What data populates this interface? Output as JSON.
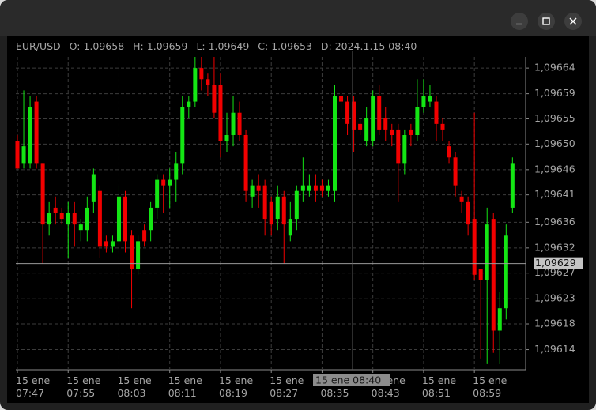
{
  "chart_data": {
    "type": "candlestick",
    "header": [
      "EUR/USD",
      "O: 1.09658",
      "H: 1.09659",
      "L: 1.09649",
      "C: 1.09653",
      "D: 2024.1.15 08:40"
    ],
    "categories": [
      "15 ene 07:47",
      null,
      null,
      null,
      null,
      null,
      null,
      null,
      "15 ene 07:55",
      null,
      null,
      null,
      null,
      null,
      null,
      null,
      "15 ene 08:03",
      null,
      null,
      null,
      null,
      null,
      null,
      null,
      "15 ene 08:11",
      null,
      null,
      null,
      null,
      null,
      null,
      null,
      "15 ene 08:19",
      null,
      null,
      null,
      null,
      null,
      null,
      null,
      "15 ene 08:27",
      null,
      null,
      null,
      null,
      null,
      null,
      null,
      "15 ene 08:35",
      null,
      null,
      null,
      null,
      null,
      null,
      null,
      "15 ene 08:43",
      null,
      null,
      null,
      null,
      null,
      null,
      null,
      "15 ene 08:51",
      null,
      null,
      null,
      null,
      null,
      null,
      null,
      "15 ene 08:59",
      null,
      null,
      null,
      null,
      null,
      null
    ],
    "open": [
      1.09651,
      1.09647,
      1.09647,
      1.09658,
      1.09647,
      1.09636,
      1.09639,
      1.09638,
      1.09636,
      1.09638,
      1.09635,
      1.09635,
      1.0964,
      1.09642,
      1.09633,
      1.09632,
      1.09633,
      1.09641,
      1.09634,
      1.09628,
      1.09635,
      1.09635,
      1.09639,
      1.09644,
      1.09643,
      1.09644,
      1.09647,
      1.09657,
      1.09658,
      1.09664,
      1.09662,
      1.09661,
      1.09661,
      1.09651,
      1.09652,
      1.09656,
      1.09652,
      1.09641,
      1.09643,
      1.09643,
      1.0964,
      1.09637,
      1.09641,
      1.09634,
      1.09637,
      1.09642,
      1.09642,
      1.09643,
      1.09643,
      1.09642,
      1.09642,
      1.09659,
      1.09658,
      1.09658,
      1.09654,
      1.09651,
      1.09651,
      1.09659,
      1.09655,
      1.09653,
      1.09653,
      1.09647,
      1.09653,
      1.09652,
      1.09657,
      1.09658,
      1.09658,
      1.09654,
      1.0965,
      1.09648,
      1.09641,
      1.0964,
      1.09637,
      1.09628,
      1.09626,
      1.09637,
      1.09617,
      1.09621,
      1.09639
    ],
    "high": [
      1.09652,
      1.0966,
      1.09659,
      1.09659,
      1.09647,
      1.0964,
      1.09641,
      1.09639,
      1.0964,
      1.0964,
      1.09637,
      1.09641,
      1.09646,
      1.09643,
      1.09634,
      1.09634,
      1.09643,
      1.09642,
      1.09635,
      1.09634,
      1.09636,
      1.0964,
      1.09645,
      1.09645,
      1.09646,
      1.09649,
      1.09659,
      1.09659,
      1.09666,
      1.09666,
      1.09663,
      1.09666,
      1.09663,
      1.09656,
      1.09659,
      1.09658,
      1.09653,
      1.09644,
      1.09645,
      1.09644,
      1.09641,
      1.09643,
      1.09642,
      1.0964,
      1.09643,
      1.09648,
      1.09645,
      1.09645,
      1.09644,
      1.09644,
      1.09661,
      1.0966,
      1.09659,
      1.09659,
      1.09655,
      1.09657,
      1.0966,
      1.09661,
      1.09657,
      1.09654,
      1.09654,
      1.09653,
      1.09654,
      1.09662,
      1.09662,
      1.09661,
      1.09659,
      1.09655,
      1.09651,
      1.09649,
      1.09642,
      1.09641,
      1.09656,
      1.09628,
      1.09639,
      1.09638,
      1.09624,
      1.09636,
      1.09648
    ],
    "low": [
      1.09646,
      1.09646,
      1.09646,
      1.09646,
      1.09629,
      1.09634,
      1.09636,
      1.09636,
      1.0963,
      1.09632,
      1.09633,
      1.09633,
      1.09638,
      1.0963,
      1.09631,
      1.09631,
      1.09631,
      1.09631,
      1.09621,
      1.09627,
      1.09632,
      1.09633,
      1.09637,
      1.09638,
      1.09639,
      1.0964,
      1.09645,
      1.09655,
      1.09657,
      1.0966,
      1.09659,
      1.09655,
      1.09648,
      1.09649,
      1.0965,
      1.09651,
      1.0964,
      1.09639,
      1.09639,
      1.09634,
      1.09634,
      1.09635,
      1.09629,
      1.09633,
      1.09635,
      1.0964,
      1.09641,
      1.0964,
      1.09641,
      1.09641,
      1.0964,
      1.09656,
      1.09652,
      1.09649,
      1.09652,
      1.0965,
      1.0965,
      1.09652,
      1.09651,
      1.0965,
      1.0964,
      1.09645,
      1.0965,
      1.09651,
      1.09656,
      1.09657,
      1.09651,
      1.09651,
      1.09647,
      1.09641,
      1.09638,
      1.09634,
      1.09626,
      1.09612,
      1.09611,
      1.09613,
      1.09611,
      1.09619,
      1.09638
    ],
    "close": [
      1.09646,
      1.0965,
      1.09657,
      1.09647,
      1.09636,
      1.09638,
      1.09638,
      1.09637,
      1.09638,
      1.09636,
      1.09636,
      1.09639,
      1.09645,
      1.09632,
      1.09632,
      1.09633,
      1.09641,
      1.09633,
      1.09628,
      1.09633,
      1.09633,
      1.09639,
      1.09644,
      1.09643,
      1.09644,
      1.09647,
      1.09657,
      1.09658,
      1.09664,
      1.09662,
      1.09661,
      1.09656,
      1.09651,
      1.09652,
      1.09656,
      1.09652,
      1.09642,
      1.09643,
      1.09642,
      1.09637,
      1.09636,
      1.09641,
      1.09636,
      1.09637,
      1.09642,
      1.09643,
      1.09643,
      1.09642,
      1.09642,
      1.09643,
      1.09659,
      1.09658,
      1.09654,
      1.09653,
      1.09653,
      1.09655,
      1.09659,
      1.09653,
      1.09653,
      1.09652,
      1.09647,
      1.09652,
      1.09652,
      1.09657,
      1.09659,
      1.09659,
      1.09654,
      1.09653,
      1.09648,
      1.09643,
      1.0964,
      1.09636,
      1.09627,
      1.09626,
      1.09636,
      1.09617,
      1.09621,
      1.09634,
      1.09647
    ],
    "up_color": "#14e614",
    "down_color": "#f20000",
    "ylim": [
      1.0961,
      1.09666
    ],
    "yticks": [
      {
        "value": 1.09664,
        "label": "1,09664"
      },
      {
        "value": 1.096594,
        "label": "1,09659"
      },
      {
        "value": 1.096549,
        "label": "1,09655"
      },
      {
        "value": 1.096504,
        "label": "1,09650"
      },
      {
        "value": 1.096458,
        "label": "1,09646"
      },
      {
        "value": 1.096413,
        "label": "1,09641"
      },
      {
        "value": 1.096364,
        "label": "1,09636"
      },
      {
        "value": 1.096318,
        "label": "1,09632"
      },
      {
        "value": 1.096273,
        "label": "1,09627"
      },
      {
        "value": 1.096227,
        "label": "1,09623"
      },
      {
        "value": 1.096182,
        "label": "1,09618"
      },
      {
        "value": 1.096136,
        "label": "1,09614"
      }
    ],
    "grid": true,
    "crosshair": {
      "price": {
        "value": 1.09629,
        "label": "1,09629"
      },
      "time": "15 ene 08:40"
    }
  }
}
